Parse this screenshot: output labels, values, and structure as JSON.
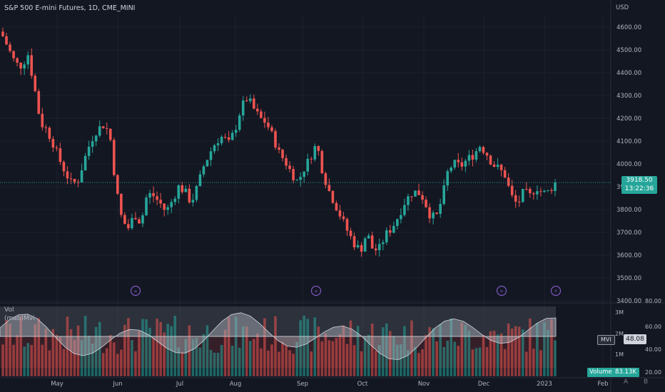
{
  "header": {
    "symbol_title": "S&P 500 E-mini Futures, 1D, CME_MINI",
    "currency": "USD"
  },
  "indicators": {
    "vol_label": "Vol",
    "mvi_label": "(mab)Mvi",
    "mvi_tag": "MVI",
    "mvi_value": "48.08",
    "volume_tag": "Volume",
    "volume_value": "83.13K"
  },
  "last_price": {
    "value": "3918.50",
    "countdown": "13:22:36"
  },
  "corner": {
    "a": "A",
    "b": "B"
  },
  "colors": {
    "up": "#26a69a",
    "down": "#ef5350",
    "bg": "#131722",
    "event": "#7e57c2"
  },
  "chart_data": {
    "type": "candlestick",
    "price_axis": {
      "range": [
        3400,
        4650
      ],
      "ticks": [
        "3400.00",
        "3500.00",
        "3600.00",
        "3700.00",
        "3800.00",
        "3900.00",
        "4000.00",
        "4100.00",
        "4200.00",
        "4300.00",
        "4400.00",
        "4500.00",
        "4600.00"
      ]
    },
    "time_axis": {
      "labels": [
        "May",
        "Jun",
        "Jul",
        "Aug",
        "Sep",
        "Oct",
        "Nov",
        "Dec",
        "2023",
        "Feb"
      ]
    },
    "volume_axis": {
      "ticks": [
        "1M",
        "2M",
        "3M"
      ]
    },
    "mvi_axis": {
      "ticks": [
        "20.00",
        "40.00",
        "60.00",
        "80.00"
      ]
    },
    "event_markers": [
      "split",
      "split",
      "split",
      "flash"
    ],
    "close_path": [
      4560,
      4500,
      4440,
      4430,
      4480,
      4340,
      4180,
      4150,
      4090,
      4020,
      3960,
      3910,
      3930,
      4020,
      4100,
      4150,
      4170,
      4140,
      3900,
      3750,
      3720,
      3780,
      3740,
      3870,
      3860,
      3830,
      3790,
      3840,
      3900,
      3880,
      3830,
      3900,
      3990,
      4050,
      4100,
      4120,
      4090,
      4150,
      4250,
      4290,
      4240,
      4200,
      4180,
      4120,
      4050,
      4010,
      3960,
      3920,
      3980,
      4030,
      4090,
      3960,
      3880,
      3820,
      3760,
      3700,
      3650,
      3620,
      3700,
      3620,
      3630,
      3690,
      3720,
      3770,
      3830,
      3870,
      3880,
      3850,
      3780,
      3760,
      3850,
      3980,
      4000,
      3990,
      4020,
      4040,
      4080,
      4050,
      4000,
      3980,
      3950,
      3860,
      3820,
      3880,
      3860,
      3900,
      3870,
      3880,
      3918.5
    ],
    "last": 3918.5
  }
}
